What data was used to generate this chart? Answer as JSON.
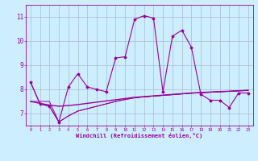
{
  "xlabel": "Windchill (Refroidissement éolien,°C)",
  "background_color": "#cceeff",
  "grid_color": "#aabbcc",
  "line_color": "#990099",
  "xlim": [
    -0.5,
    23.5
  ],
  "ylim": [
    6.5,
    11.5
  ],
  "yticks": [
    7,
    8,
    9,
    10,
    11
  ],
  "xticks": [
    0,
    1,
    2,
    3,
    4,
    5,
    6,
    7,
    8,
    9,
    10,
    11,
    12,
    13,
    14,
    15,
    16,
    17,
    18,
    19,
    20,
    21,
    22,
    23
  ],
  "series1_x": [
    0,
    1,
    2,
    3,
    4,
    5,
    6,
    7,
    8,
    9,
    10,
    11,
    12,
    13,
    14,
    15,
    16,
    17,
    18,
    19,
    20,
    21,
    22,
    23
  ],
  "series1_y": [
    8.3,
    7.4,
    7.3,
    6.65,
    8.1,
    8.65,
    8.1,
    8.0,
    7.9,
    9.3,
    9.35,
    10.9,
    11.05,
    10.95,
    7.9,
    10.2,
    10.45,
    9.75,
    7.8,
    7.55,
    7.55,
    7.25,
    7.85,
    7.85
  ],
  "series2_x": [
    0,
    1,
    2,
    3,
    4,
    5,
    6,
    7,
    8,
    9,
    10,
    11,
    12,
    13,
    14,
    15,
    16,
    17,
    18,
    19,
    20,
    21,
    22,
    23
  ],
  "series2_y": [
    7.5,
    7.42,
    7.35,
    7.3,
    7.33,
    7.37,
    7.42,
    7.47,
    7.52,
    7.57,
    7.62,
    7.67,
    7.7,
    7.73,
    7.76,
    7.79,
    7.82,
    7.85,
    7.87,
    7.89,
    7.91,
    7.92,
    7.94,
    7.96
  ],
  "series3_x": [
    0,
    1,
    2,
    3,
    4,
    5,
    6,
    7,
    8,
    9,
    10,
    11,
    12,
    13,
    14,
    15,
    16,
    17,
    18,
    19,
    20,
    21,
    22,
    23
  ],
  "series3_y": [
    7.5,
    7.5,
    7.5,
    6.65,
    6.9,
    7.1,
    7.2,
    7.3,
    7.4,
    7.5,
    7.58,
    7.65,
    7.69,
    7.72,
    7.75,
    7.78,
    7.81,
    7.84,
    7.86,
    7.88,
    7.9,
    7.92,
    7.94,
    7.96
  ],
  "series4_x": [
    0,
    1,
    2,
    3,
    4,
    5,
    6,
    7,
    8,
    9,
    10,
    11,
    12,
    13,
    14,
    15,
    16,
    17,
    18,
    19,
    20,
    21,
    22,
    23
  ],
  "series4_y": [
    8.3,
    7.4,
    7.3,
    6.65,
    6.9,
    7.1,
    7.2,
    7.3,
    7.4,
    7.5,
    7.58,
    7.65,
    7.69,
    7.72,
    7.75,
    7.78,
    7.81,
    7.84,
    7.86,
    7.88,
    7.9,
    7.92,
    7.94,
    7.96
  ]
}
